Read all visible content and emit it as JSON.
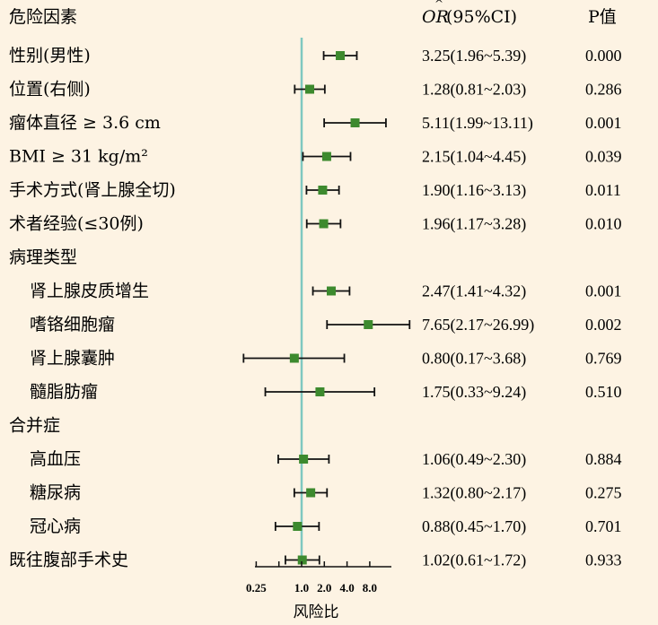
{
  "chart_data": {
    "type": "forest",
    "headers": {
      "factor": "危险因素",
      "or": "OR",
      "ci": "(95%CI)",
      "p": "P值"
    },
    "xlabel": "风险比",
    "xscale": "log2",
    "xlim": [
      0.125,
      32
    ],
    "xticks": [
      {
        "value": 0.25,
        "label": "0.25"
      },
      {
        "value": 1,
        "label": "1.0"
      },
      {
        "value": 2,
        "label": "2.0"
      },
      {
        "value": 4,
        "label": "4.0"
      },
      {
        "value": 8,
        "label": "8.0"
      }
    ],
    "reference_line": 1,
    "marker_color": "#3d8a2e",
    "ref_color": "#7fc8c0",
    "rows": [
      {
        "label": "性别(男性)",
        "indent": false,
        "or": 3.25,
        "lo": 1.96,
        "hi": 5.39,
        "text": "3.25(1.96~5.39)",
        "p": "0.000"
      },
      {
        "label": "位置(右侧)",
        "indent": false,
        "or": 1.28,
        "lo": 0.81,
        "hi": 2.03,
        "text": "1.28(0.81~2.03)",
        "p": "0.286"
      },
      {
        "label": "瘤体直径 ≥ 3.6 cm",
        "indent": false,
        "or": 5.11,
        "lo": 1.99,
        "hi": 13.11,
        "text": "5.11(1.99~13.11)",
        "p": "0.001"
      },
      {
        "label": "BMI ≥ 31 kg/m²",
        "indent": false,
        "or": 2.15,
        "lo": 1.04,
        "hi": 4.45,
        "text": "2.15(1.04~4.45)",
        "p": "0.039"
      },
      {
        "label": "手术方式(肾上腺全切)",
        "indent": false,
        "or": 1.9,
        "lo": 1.16,
        "hi": 3.13,
        "text": "1.90(1.16~3.13)",
        "p": "0.011"
      },
      {
        "label": "术者经验(≤30例)",
        "indent": false,
        "or": 1.96,
        "lo": 1.17,
        "hi": 3.28,
        "text": "1.96(1.17~3.28)",
        "p": "0.010"
      },
      {
        "label": "病理类型",
        "indent": false,
        "group": true
      },
      {
        "label": "肾上腺皮质增生",
        "indent": true,
        "or": 2.47,
        "lo": 1.41,
        "hi": 4.32,
        "text": "2.47(1.41~4.32)",
        "p": "0.001"
      },
      {
        "label": "嗜铬细胞瘤",
        "indent": true,
        "or": 7.65,
        "lo": 2.17,
        "hi": 26.99,
        "text": "7.65(2.17~26.99)",
        "p": "0.002"
      },
      {
        "label": "肾上腺囊肿",
        "indent": true,
        "or": 0.8,
        "lo": 0.17,
        "hi": 3.68,
        "text": "0.80(0.17~3.68)",
        "p": "0.769"
      },
      {
        "label": "髓脂肪瘤",
        "indent": true,
        "or": 1.75,
        "lo": 0.33,
        "hi": 9.24,
        "text": "1.75(0.33~9.24)",
        "p": "0.510"
      },
      {
        "label": "合并症",
        "indent": false,
        "group": true
      },
      {
        "label": "高血压",
        "indent": true,
        "or": 1.06,
        "lo": 0.49,
        "hi": 2.3,
        "text": "1.06(0.49~2.30)",
        "p": "0.884"
      },
      {
        "label": "糖尿病",
        "indent": true,
        "or": 1.32,
        "lo": 0.8,
        "hi": 2.17,
        "text": "1.32(0.80~2.17)",
        "p": "0.275"
      },
      {
        "label": "冠心病",
        "indent": true,
        "or": 0.88,
        "lo": 0.45,
        "hi": 1.7,
        "text": "0.88(0.45~1.70)",
        "p": "0.701"
      },
      {
        "label": "既往腹部手术史",
        "indent": false,
        "or": 1.02,
        "lo": 0.61,
        "hi": 1.72,
        "text": "1.02(0.61~1.72)",
        "p": "0.933"
      }
    ]
  }
}
